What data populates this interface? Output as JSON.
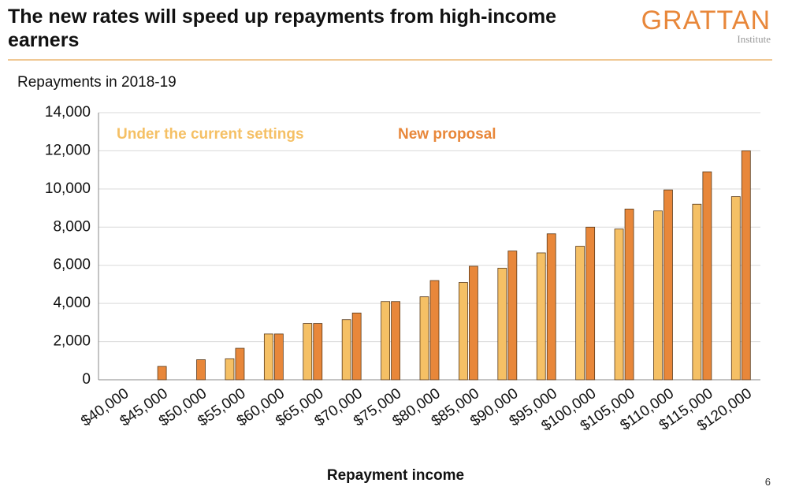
{
  "header": {
    "title": "The new rates will speed up repayments from high-income earners",
    "logo": "GRATTAN",
    "logo_sub": "Institute"
  },
  "page_number": "6",
  "chart_data": {
    "type": "bar",
    "y_label": "Repayments in 2018-19",
    "x_label": "Repayment income",
    "categories": [
      "$40,000",
      "$45,000",
      "$50,000",
      "$55,000",
      "$60,000",
      "$65,000",
      "$70,000",
      "$75,000",
      "$80,000",
      "$85,000",
      "$90,000",
      "$95,000",
      "$100,000",
      "$105,000",
      "$110,000",
      "$115,000",
      "$120,000"
    ],
    "series": [
      {
        "name": "Under the current settings",
        "color": "#f5c065",
        "values": [
          0,
          0,
          0,
          1100,
          2400,
          2950,
          3150,
          4100,
          4350,
          5100,
          5850,
          6650,
          7000,
          7900,
          8850,
          9200,
          9600
        ]
      },
      {
        "name": "New proposal",
        "color": "#e8873a",
        "values": [
          0,
          700,
          1050,
          1650,
          2400,
          2950,
          3500,
          4100,
          5200,
          5950,
          6750,
          7650,
          8000,
          8950,
          9950,
          10900,
          12000
        ]
      }
    ],
    "ylim": [
      0,
      14000
    ],
    "yticks": [
      0,
      {
        "value": 2000,
        "label": "2,000"
      },
      {
        "value": 4000,
        "label": "4,000"
      },
      {
        "value": 6000,
        "label": "6,000"
      },
      {
        "value": 8000,
        "label": "8,000"
      },
      {
        "value": 10000,
        "label": "10,000"
      },
      {
        "value": 12000,
        "label": "12,000"
      },
      {
        "value": 14000,
        "label": "14,000"
      }
    ],
    "grid": true,
    "legend": "top-left"
  }
}
